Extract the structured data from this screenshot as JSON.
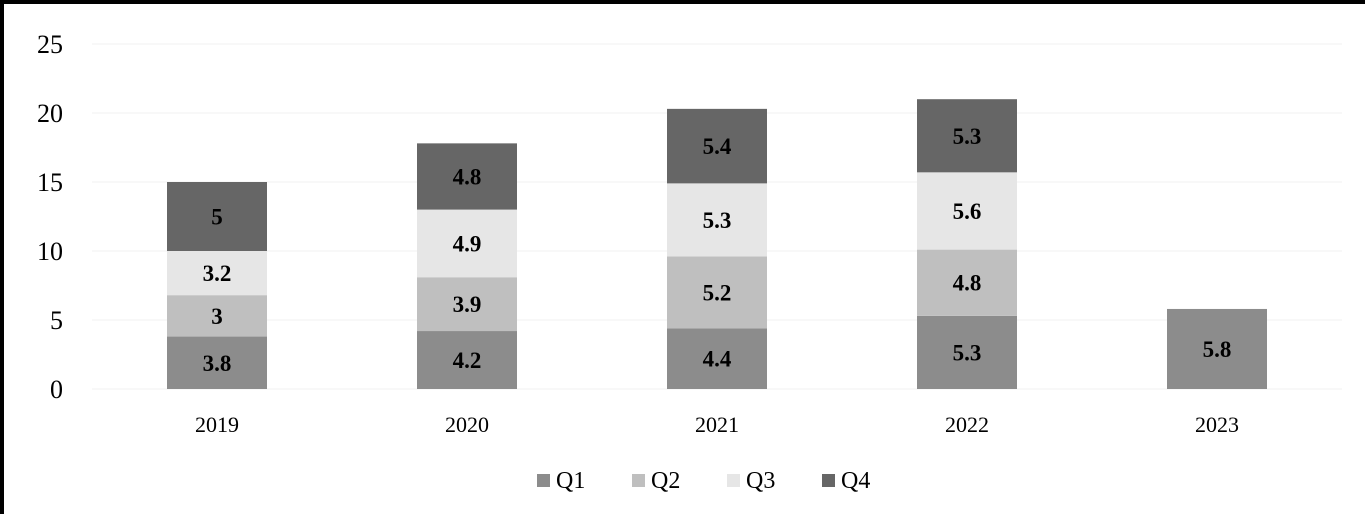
{
  "chart_data": {
    "type": "bar",
    "stacked": true,
    "categories": [
      "2019",
      "2020",
      "2021",
      "2022",
      "2023"
    ],
    "series": [
      {
        "name": "Q1",
        "color": "#8c8c8c",
        "values": [
          3.8,
          4.2,
          4.4,
          5.3,
          5.8
        ]
      },
      {
        "name": "Q2",
        "color": "#bfbfbf",
        "values": [
          3,
          3.9,
          5.2,
          4.8,
          null
        ]
      },
      {
        "name": "Q3",
        "color": "#e6e6e6",
        "values": [
          3.2,
          4.9,
          5.3,
          5.6,
          null
        ]
      },
      {
        "name": "Q4",
        "color": "#666666",
        "values": [
          5,
          4.8,
          5.4,
          5.3,
          null
        ]
      }
    ],
    "yticks": [
      "0",
      "5",
      "10",
      "15",
      "20",
      "25"
    ],
    "ylim": [
      0,
      25
    ],
    "grid": true,
    "legend_position": "bottom"
  }
}
